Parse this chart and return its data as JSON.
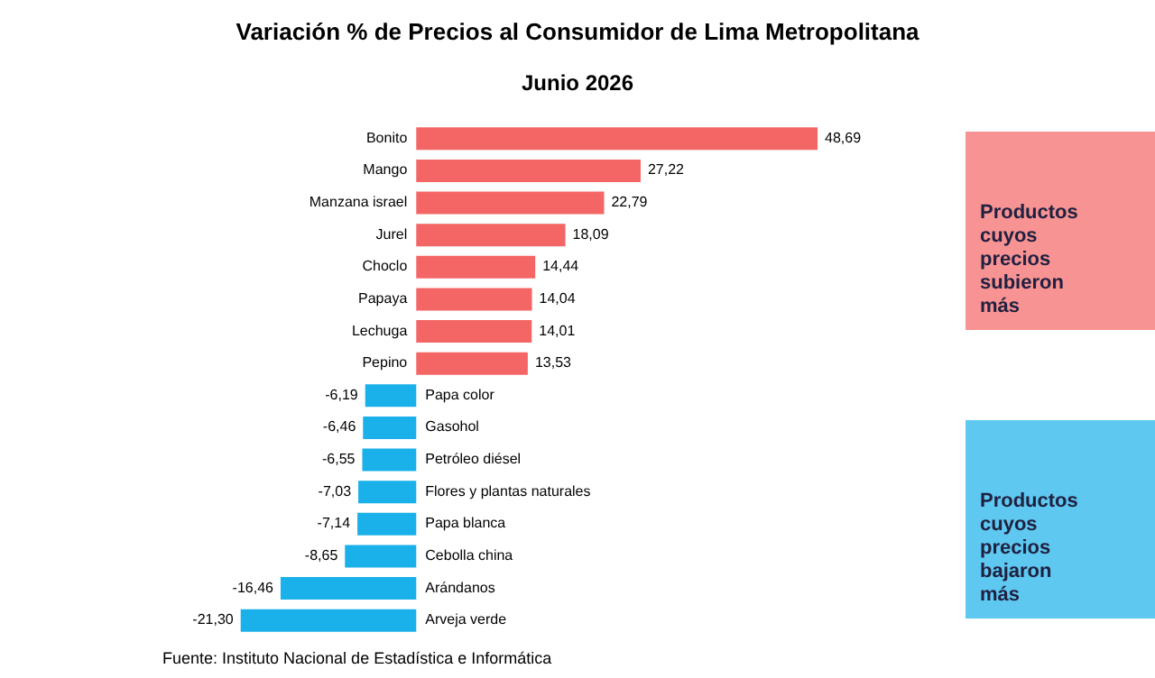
{
  "chart_data": {
    "type": "bar",
    "orientation": "horizontal",
    "title": "Variación %  de Precios al Consumidor de Lima Metropolitana",
    "subtitle": "Junio 2026",
    "categories": [
      "Bonito",
      "Mango",
      "Manzana israel",
      "Jurel",
      "Choclo",
      "Papaya",
      "Lechuga",
      "Pepino",
      "Papa color",
      "Gasohol",
      "Petróleo diésel",
      "Flores y plantas naturales",
      "Papa blanca",
      "Cebolla china",
      "Arándanos",
      "Arveja verde"
    ],
    "values": [
      48.69,
      27.22,
      22.79,
      18.09,
      14.44,
      14.04,
      14.01,
      13.53,
      -6.19,
      -6.46,
      -6.55,
      -7.03,
      -7.14,
      -8.65,
      -16.46,
      -21.3
    ],
    "colors": [
      "#f46565",
      "#f46565",
      "#f46565",
      "#f46565",
      "#f46565",
      "#f46565",
      "#f46565",
      "#f46565",
      "#1ab0ea",
      "#1ab0ea",
      "#1ab0ea",
      "#1ab0ea",
      "#1ab0ea",
      "#1ab0ea",
      "#1ab0ea",
      "#1ab0ea"
    ],
    "value_labels": [
      "48,69",
      "27,22",
      "22,79",
      "18,09",
      "14,44",
      "14,04",
      "14,01",
      "13,53",
      "-6,19",
      "-6,46",
      "-6,55",
      "-7,03",
      "-7,14",
      "-8,65",
      "-16,46",
      "-21,30"
    ],
    "annotations": [
      "Productos cuyos precios subieron más",
      "Productos cuyos precios bajaron más",
      "Fuente: Instituto Nacional de Estadística e Informática"
    ],
    "data_labels": false
  }
}
